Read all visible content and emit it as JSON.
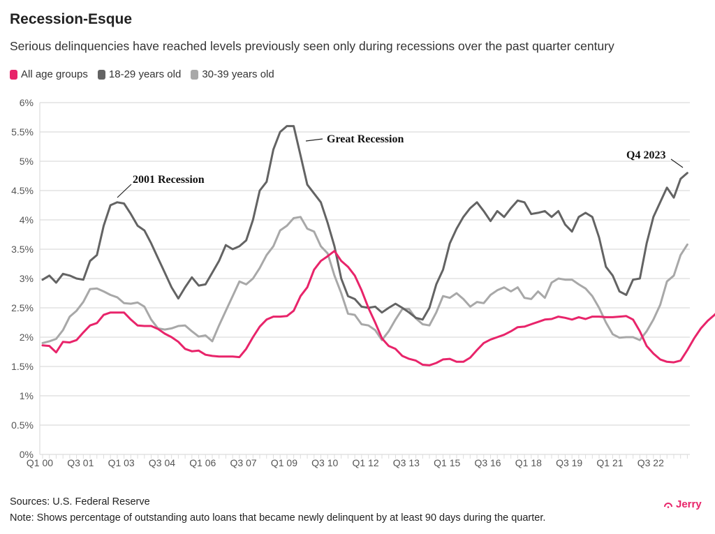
{
  "title": "Recession-Esque",
  "subtitle": "Serious delinquencies have reached levels previously seen only during recessions over the past quarter century",
  "sources": "Sources: U.S. Federal Reserve",
  "note": "Note: Shows percentage of outstanding auto loans that became newly delinquent by at least 90 days during the quarter.",
  "logo": {
    "text": "Jerry",
    "color": "#e8246a"
  },
  "chart_data": {
    "type": "line",
    "title": "",
    "xlabel": "",
    "ylabel": "",
    "ylim": [
      0,
      6
    ],
    "y_ticks": [
      "0%",
      "0.5%",
      "1%",
      "1.5%",
      "2%",
      "2.5%",
      "3%",
      "3.5%",
      "4%",
      "4.5%",
      "5%",
      "5.5%",
      "6%"
    ],
    "x_range": [
      "Q1 00",
      "Q4 23"
    ],
    "x_tick_labels": [
      "Q1 00",
      "Q3 01",
      "Q1 03",
      "Q3 04",
      "Q1 06",
      "Q3 07",
      "Q1 09",
      "Q3 10",
      "Q1 12",
      "Q3 13",
      "Q1 15",
      "Q3 16",
      "Q1 18",
      "Q3 19",
      "Q1 21",
      "Q3 22"
    ],
    "grid": true,
    "legend_placement": "top-left",
    "annotations": [
      {
        "text": "2001 Recession",
        "quarter": "Q3 02"
      },
      {
        "text": "Great Recession",
        "quarter": "Q3 09"
      },
      {
        "text": "Q4 2023",
        "quarter": "Q4 23"
      }
    ],
    "series": [
      {
        "name": "All age groups",
        "color": "#e8246a",
        "values": [
          1.86,
          1.85,
          1.74,
          1.92,
          1.91,
          1.95,
          2.08,
          2.2,
          2.24,
          2.38,
          2.42,
          2.42,
          2.42,
          2.3,
          2.2,
          2.19,
          2.19,
          2.14,
          2.06,
          2.0,
          1.92,
          1.8,
          1.76,
          1.77,
          1.7,
          1.68,
          1.67,
          1.67,
          1.67,
          1.66,
          1.8,
          2.0,
          2.18,
          2.3,
          2.35,
          2.35,
          2.36,
          2.45,
          2.7,
          2.85,
          3.15,
          3.3,
          3.38,
          3.47,
          3.3,
          3.2,
          3.05,
          2.8,
          2.5,
          2.25,
          1.98,
          1.85,
          1.8,
          1.68,
          1.63,
          1.6,
          1.53,
          1.52,
          1.56,
          1.62,
          1.63,
          1.58,
          1.58,
          1.65,
          1.78,
          1.9,
          1.96,
          2.0,
          2.04,
          2.1,
          2.17,
          2.18,
          2.22,
          2.26,
          2.3,
          2.31,
          2.35,
          2.33,
          2.3,
          2.34,
          2.31,
          2.35,
          2.35,
          2.34,
          2.34,
          2.35,
          2.36,
          2.3,
          2.1,
          1.85,
          1.72,
          1.62,
          1.58,
          1.57,
          1.6,
          1.78
        ]
      },
      {
        "name": "18-29 years old",
        "color": "#636363",
        "values": []
      },
      {
        "name": "30-39 years old",
        "color": "#a8a8a8",
        "values": []
      }
    ]
  }
}
